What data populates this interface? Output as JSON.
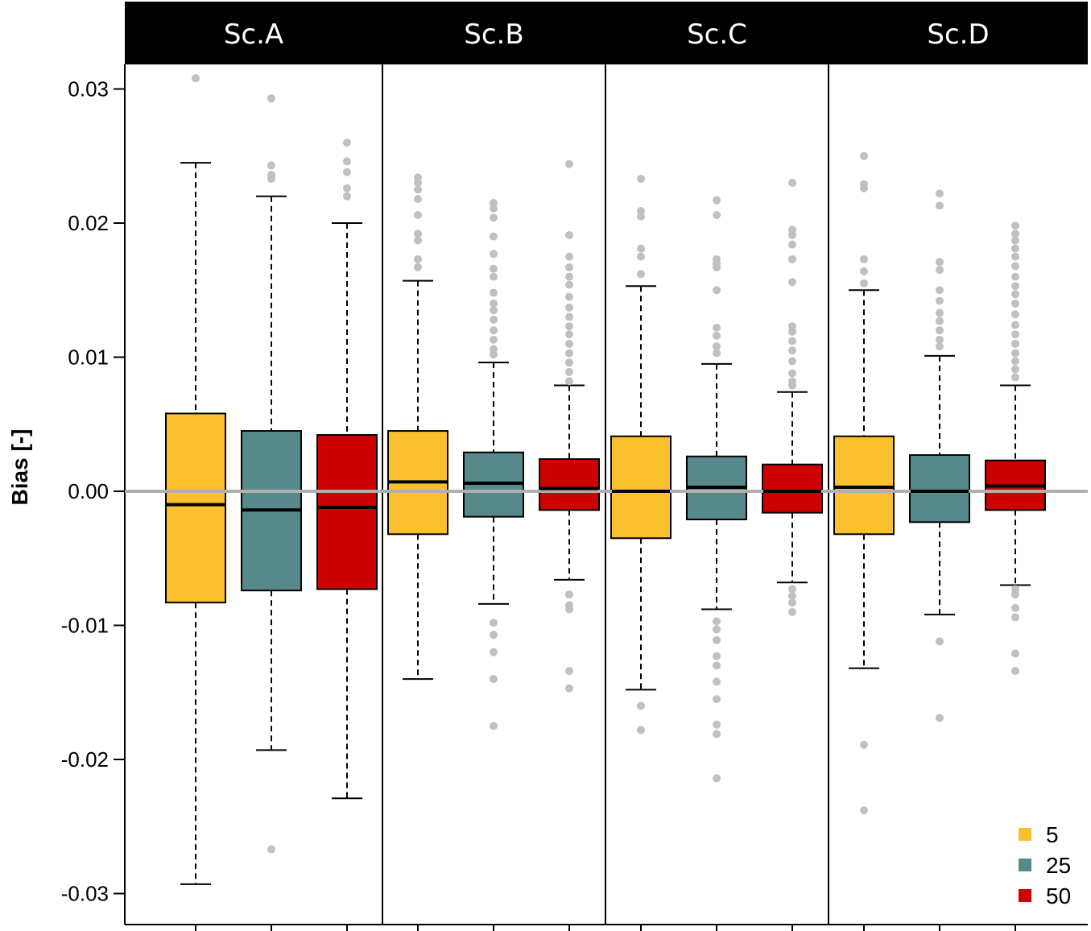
{
  "chart_data": {
    "type": "boxplot",
    "title": "",
    "xlabel": "",
    "ylabel": "Bias [-]",
    "ylim": [
      -0.0325,
      0.0315
    ],
    "yticks": [
      0.03,
      0.02,
      0.01,
      0.0,
      -0.01,
      -0.02,
      -0.03
    ],
    "ytick_labels": [
      "0.03",
      "0.02",
      "0.01",
      "0.00",
      "-0.01",
      "-0.02",
      "-0.03"
    ],
    "reference_line": 0.0,
    "legend": {
      "placement": "bottom-right",
      "entries": [
        {
          "label": "5",
          "color": "#FBC02D"
        },
        {
          "label": "25",
          "color": "#568A8A"
        },
        {
          "label": "50",
          "color": "#CC0000"
        }
      ]
    },
    "colors": {
      "header_bg": "#000000",
      "header_text": "#ffffff",
      "outlier": "#c0c0c0",
      "reference_line": "#b0b0b0"
    },
    "panels": [
      {
        "name": "Sc.A",
        "series": [
          {
            "name": "5",
            "whisker_low": -0.0293,
            "q1": -0.0083,
            "median": -0.001,
            "q3": 0.0058,
            "whisker_high": 0.0245,
            "outliers": [
              0.0308
            ]
          },
          {
            "name": "25",
            "whisker_low": -0.0193,
            "q1": -0.0074,
            "median": -0.0014,
            "q3": 0.0045,
            "whisker_high": 0.022,
            "outliers": [
              0.0293,
              0.0243,
              0.0236,
              0.0233,
              -0.0267
            ]
          },
          {
            "name": "50",
            "whisker_low": -0.0229,
            "q1": -0.0073,
            "median": -0.0012,
            "q3": 0.0042,
            "whisker_high": 0.02,
            "outliers": [
              0.026,
              0.0246,
              0.0238,
              0.0226,
              0.022
            ]
          }
        ]
      },
      {
        "name": "Sc.B",
        "series": [
          {
            "name": "5",
            "whisker_low": -0.014,
            "q1": -0.0032,
            "median": 0.0007,
            "q3": 0.0045,
            "whisker_high": 0.0157,
            "outliers": [
              0.0234,
              0.023,
              0.0225,
              0.0218,
              0.0206,
              0.0192,
              0.0187,
              0.0173,
              0.0167
            ]
          },
          {
            "name": "25",
            "whisker_low": -0.0084,
            "q1": -0.0019,
            "median": 0.0006,
            "q3": 0.0029,
            "whisker_high": 0.0096,
            "outliers": [
              0.0215,
              0.0211,
              0.0204,
              0.019,
              0.0177,
              0.0166,
              0.016,
              0.0148,
              0.014,
              0.0135,
              0.0128,
              0.012,
              0.0113,
              0.0106,
              0.0102,
              -0.0098,
              -0.0107,
              -0.012,
              -0.014,
              -0.0175
            ]
          },
          {
            "name": "50",
            "whisker_low": -0.0066,
            "q1": -0.0014,
            "median": 0.0002,
            "q3": 0.0024,
            "whisker_high": 0.0079,
            "outliers": [
              0.0244,
              0.0191,
              0.0175,
              0.0167,
              0.016,
              0.0154,
              0.0145,
              0.0137,
              0.013,
              0.0123,
              0.0117,
              0.011,
              0.0103,
              0.0096,
              0.0089,
              0.0082,
              -0.0077,
              -0.0085,
              -0.0088,
              -0.0134,
              -0.0147
            ]
          }
        ]
      },
      {
        "name": "Sc.C",
        "series": [
          {
            "name": "5",
            "whisker_low": -0.0148,
            "q1": -0.0035,
            "median": 0.0,
            "q3": 0.0041,
            "whisker_high": 0.0153,
            "outliers": [
              0.0233,
              0.0209,
              0.0205,
              0.0181,
              0.0175,
              0.0162,
              -0.016,
              -0.0178
            ]
          },
          {
            "name": "25",
            "whisker_low": -0.0088,
            "q1": -0.0021,
            "median": 0.0003,
            "q3": 0.0026,
            "whisker_high": 0.0095,
            "outliers": [
              0.0217,
              0.0206,
              0.0173,
              0.017,
              0.0167,
              0.015,
              0.0122,
              0.0116,
              0.0108,
              0.0103,
              -0.0097,
              -0.0103,
              -0.0111,
              -0.0123,
              -0.013,
              -0.0142,
              -0.0155,
              -0.0174,
              -0.0181,
              -0.0214
            ]
          },
          {
            "name": "50",
            "whisker_low": -0.0068,
            "q1": -0.0016,
            "median": 0.0,
            "q3": 0.002,
            "whisker_high": 0.0074,
            "outliers": [
              0.023,
              0.0195,
              0.0191,
              0.0184,
              0.0173,
              0.0156,
              0.0123,
              0.0119,
              0.0112,
              0.0105,
              0.0097,
              0.0088,
              0.0082,
              0.0079,
              -0.0073,
              -0.0078,
              -0.0083,
              -0.009
            ]
          }
        ]
      },
      {
        "name": "Sc.D",
        "series": [
          {
            "name": "5",
            "whisker_low": -0.0132,
            "q1": -0.0032,
            "median": 0.0003,
            "q3": 0.0041,
            "whisker_high": 0.015,
            "outliers": [
              0.025,
              0.0229,
              0.0226,
              0.0173,
              0.0164,
              0.0155,
              -0.0189,
              -0.0238
            ]
          },
          {
            "name": "25",
            "whisker_low": -0.0092,
            "q1": -0.0023,
            "median": 0.0,
            "q3": 0.0027,
            "whisker_high": 0.0101,
            "outliers": [
              0.0222,
              0.0213,
              0.0171,
              0.0165,
              0.015,
              0.0142,
              0.0133,
              0.0127,
              0.012,
              0.0113,
              0.0108,
              -0.0112,
              -0.0169
            ]
          },
          {
            "name": "50",
            "whisker_low": -0.007,
            "q1": -0.0014,
            "median": 0.0004,
            "q3": 0.0023,
            "whisker_high": 0.0079,
            "outliers": [
              0.0198,
              0.0192,
              0.0187,
              0.0181,
              0.0175,
              0.0168,
              0.016,
              0.0153,
              0.0147,
              0.014,
              0.0132,
              0.0124,
              0.0117,
              0.011,
              0.0103,
              0.0097,
              0.0091,
              0.0085,
              -0.0073,
              -0.0077,
              -0.0087,
              -0.0094,
              -0.0121,
              -0.0134
            ]
          }
        ]
      }
    ]
  }
}
